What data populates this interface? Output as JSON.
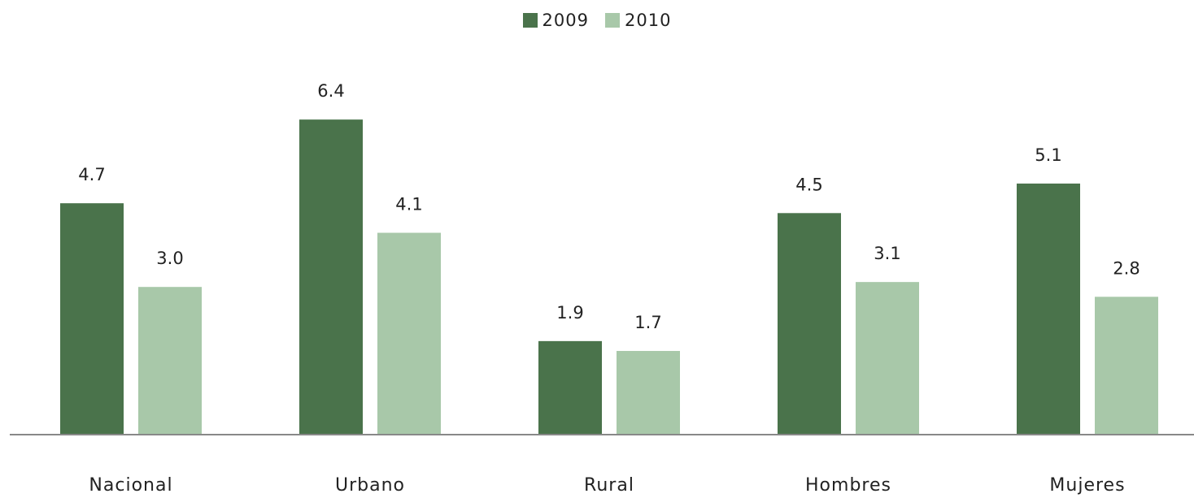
{
  "chart_data": {
    "type": "bar",
    "categories": [
      "Nacional",
      "Urbano",
      "Rural",
      "Hombres",
      "Mujeres"
    ],
    "series": [
      {
        "name": "2009",
        "values": [
          4.7,
          6.4,
          1.9,
          4.5,
          5.1
        ],
        "labels": [
          "4.7",
          "6.4",
          "1.9",
          "4.5",
          "5.1"
        ],
        "color": "#4a734b"
      },
      {
        "name": "2010",
        "values": [
          3.0,
          4.1,
          1.7,
          3.1,
          2.8
        ],
        "labels": [
          "3.0",
          "4.1",
          "1.7",
          "3.1",
          "2.8"
        ],
        "color": "#a8c8a9"
      }
    ],
    "ylim": [
      0,
      7
    ],
    "legend_position": "top-center",
    "grid": false,
    "axis_color": "#888888"
  }
}
